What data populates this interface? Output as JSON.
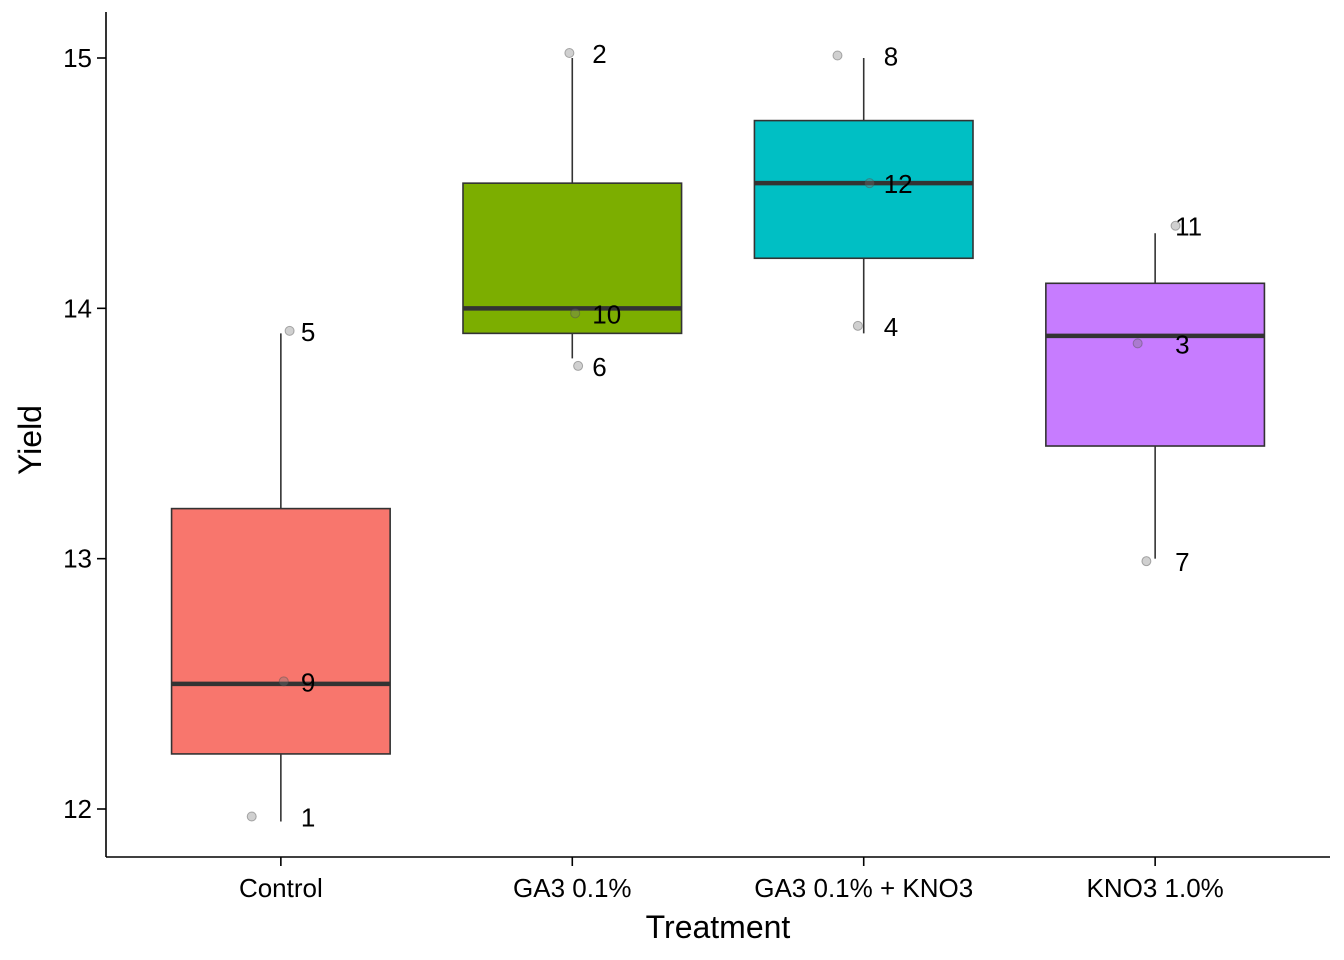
{
  "chart_data": {
    "type": "box",
    "xlabel": "Treatment",
    "ylabel": "Yield",
    "ylim": [
      11.8,
      15.2
    ],
    "yticks": [
      12,
      13,
      14,
      15
    ],
    "grid": false,
    "legend": "none",
    "groups": [
      {
        "category": "Control",
        "color": "#F8766D",
        "q1": 12.22,
        "median": 12.5,
        "q3": 13.2,
        "whisker_low": 11.95,
        "whisker_high": 13.9,
        "points": [
          {
            "label": "5",
            "jitter": 0.03,
            "y": 13.91
          },
          {
            "label": "9",
            "jitter": 0.01,
            "y": 12.51
          },
          {
            "label": "1",
            "jitter": -0.1,
            "y": 11.97
          }
        ]
      },
      {
        "category": "GA3 0.1%",
        "color": "#7CAE00",
        "q1": 13.9,
        "median": 14.0,
        "q3": 14.5,
        "whisker_low": 13.8,
        "whisker_high": 15.0,
        "points": [
          {
            "label": "2",
            "jitter": -0.01,
            "y": 15.02
          },
          {
            "label": "10",
            "jitter": 0.01,
            "y": 13.98
          },
          {
            "label": "6",
            "jitter": 0.02,
            "y": 13.77
          }
        ]
      },
      {
        "category": "GA3 0.1% +  KNO3",
        "color": "#00BFC4",
        "q1": 14.2,
        "median": 14.5,
        "q3": 14.75,
        "whisker_low": 13.9,
        "whisker_high": 15.0,
        "points": [
          {
            "label": "8",
            "jitter": -0.09,
            "y": 15.01
          },
          {
            "label": "12",
            "jitter": 0.02,
            "y": 14.5
          },
          {
            "label": "4",
            "jitter": -0.02,
            "y": 13.93
          }
        ]
      },
      {
        "category": "KNO3 1.0%",
        "color": "#C77CFF",
        "q1": 13.45,
        "median": 13.89,
        "q3": 14.1,
        "whisker_low": 13.0,
        "whisker_high": 14.3,
        "points": [
          {
            "label": "11",
            "jitter": 0.07,
            "y": 14.33
          },
          {
            "label": "3",
            "jitter": -0.06,
            "y": 13.86
          },
          {
            "label": "7",
            "jitter": -0.03,
            "y": 12.99
          }
        ]
      }
    ]
  }
}
